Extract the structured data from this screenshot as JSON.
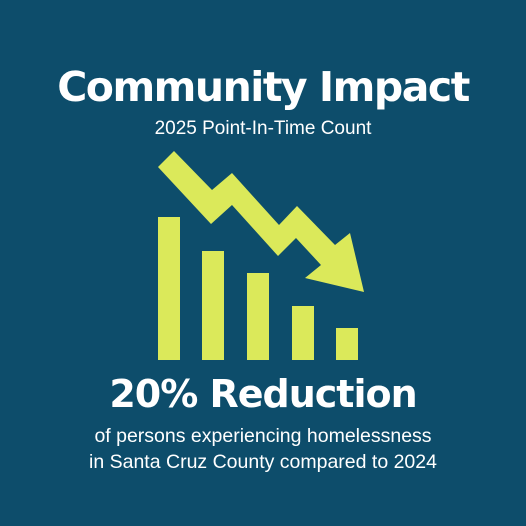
{
  "header": {
    "title": "Community Impact",
    "subtitle": "2025 Point-In-Time Count"
  },
  "graphic": {
    "icon": "declining-bar-chart-with-down-arrow",
    "accent_color": "#dbe95a",
    "background_color": "#0d4d6b"
  },
  "stat": {
    "headline": "20% Reduction",
    "caption_line1": "of persons experiencing homelessness",
    "caption_line2": "in Santa Cruz County compared to 2024"
  }
}
